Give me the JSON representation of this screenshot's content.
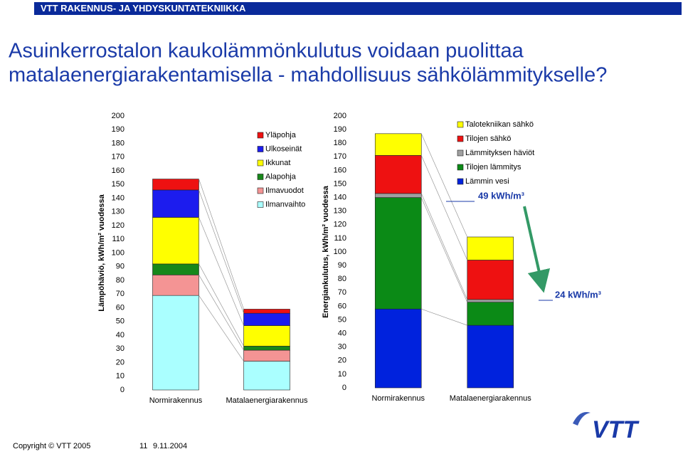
{
  "header": "VTT RAKENNUS- JA YHDYSKUNTATEKNIIKKA",
  "title": [
    "Asuinkerrostalon kaukolämmönkulutus voidaan puolittaa",
    "matalaenergiarakentamisella - mahdollisuus sähkölämmitykselle?"
  ],
  "footer": {
    "copyright": "Copyright © VTT 2005",
    "page": "11",
    "date": "9.11.2004"
  },
  "logo": "VTT",
  "chart_data": [
    {
      "type": "bar",
      "stacked": true,
      "ylabel": "Lämpöhäviö, kWh/m² vuodessa",
      "categories": [
        "Normirakennus",
        "Matalaenergiarakennus"
      ],
      "series": [
        {
          "name": "Ilmanvaihto",
          "color": "#aaffff",
          "values": [
            69,
            21
          ]
        },
        {
          "name": "Ilmavuodot",
          "color": "#f49494",
          "values": [
            15,
            8
          ]
        },
        {
          "name": "Alapohja",
          "color": "#17871a",
          "values": [
            8,
            3
          ]
        },
        {
          "name": "Ikkunat",
          "color": "#ffff00",
          "values": [
            34,
            15
          ]
        },
        {
          "name": "Ulkoseinät",
          "color": "#1c1cee",
          "values": [
            20,
            9
          ]
        },
        {
          "name": "Yläpohja",
          "color": "#ee1111",
          "values": [
            8,
            3
          ]
        }
      ],
      "ylim": [
        0,
        200
      ],
      "yticks": [
        0,
        10,
        20,
        30,
        40,
        50,
        60,
        70,
        80,
        90,
        100,
        110,
        120,
        130,
        140,
        150,
        160,
        170,
        180,
        190,
        200
      ],
      "legend": "top-center"
    },
    {
      "type": "bar",
      "stacked": true,
      "ylabel": "Energiankulutus, kWh/m² vuodessa",
      "categories": [
        "Normirakennus",
        "Matalaenergiarakennus"
      ],
      "series": [
        {
          "name": "Lämmin vesi",
          "color": "#0022dd",
          "values": [
            58,
            46
          ]
        },
        {
          "name": "Tilojen lämmitys",
          "color": "#0b8a16",
          "values": [
            82,
            17
          ]
        },
        {
          "name": "Lämmityksen häviöt",
          "color": "#a0a0a0",
          "values": [
            3,
            2
          ]
        },
        {
          "name": "Tilojen sähkö",
          "color": "#ee1111",
          "values": [
            28,
            29
          ]
        },
        {
          "name": "Talotekniikan sähkö",
          "color": "#ffff00",
          "values": [
            16,
            17
          ]
        }
      ],
      "ylim": [
        0,
        200
      ],
      "yticks": [
        0,
        10,
        20,
        30,
        40,
        50,
        60,
        70,
        80,
        90,
        100,
        110,
        120,
        130,
        140,
        150,
        160,
        170,
        180,
        190,
        200
      ],
      "legend": "top-right",
      "annotations": [
        "49 kWh/m³",
        "24 kWh/m³"
      ]
    }
  ]
}
